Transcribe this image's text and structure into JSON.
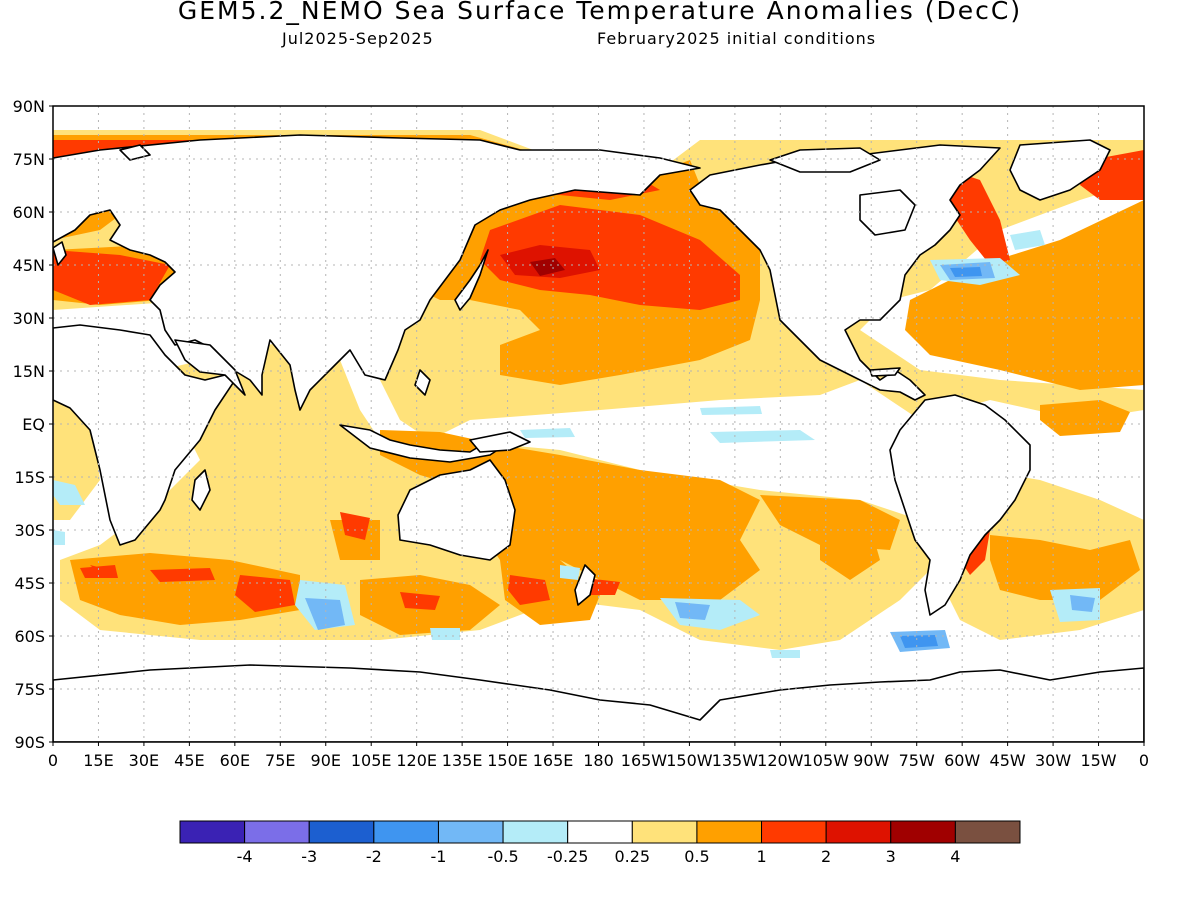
{
  "title": "GEM5.2_NEMO Sea Surface Temperature Anomalies (DecC)",
  "subtitle_period": "Jul2025-Sep2025",
  "subtitle_init": "February2025 initial conditions",
  "lat_ticks": [
    "90N",
    "75N",
    "60N",
    "45N",
    "30N",
    "15N",
    "EQ",
    "15S",
    "30S",
    "45S",
    "60S",
    "75S",
    "90S"
  ],
  "lon_ticks": [
    "0",
    "15E",
    "30E",
    "45E",
    "60E",
    "75E",
    "90E",
    "105E",
    "120E",
    "135E",
    "150E",
    "165E",
    "180",
    "165W",
    "150W",
    "135W",
    "120W",
    "105W",
    "90W",
    "75W",
    "60W",
    "45W",
    "30W",
    "15W",
    "0"
  ],
  "colorbar": {
    "colors": [
      "#3a22b4",
      "#7b6ee8",
      "#1c5fd0",
      "#3f95f0",
      "#72b8f6",
      "#b4ecf8",
      "#ffffff",
      "#ffe27a",
      "#ffa000",
      "#ff3a00",
      "#de1200",
      "#a00000",
      "#7a5040"
    ],
    "labels": [
      "-4",
      "-3",
      "-2",
      "-1",
      "-0.5",
      "-0.25",
      "0.25",
      "0.5",
      "1",
      "2",
      "3",
      "4"
    ]
  },
  "map_colors": {
    "land": "#ffffff",
    "coast": "#000000",
    "grid": "#b4b4b4",
    "frame": "#000000"
  }
}
